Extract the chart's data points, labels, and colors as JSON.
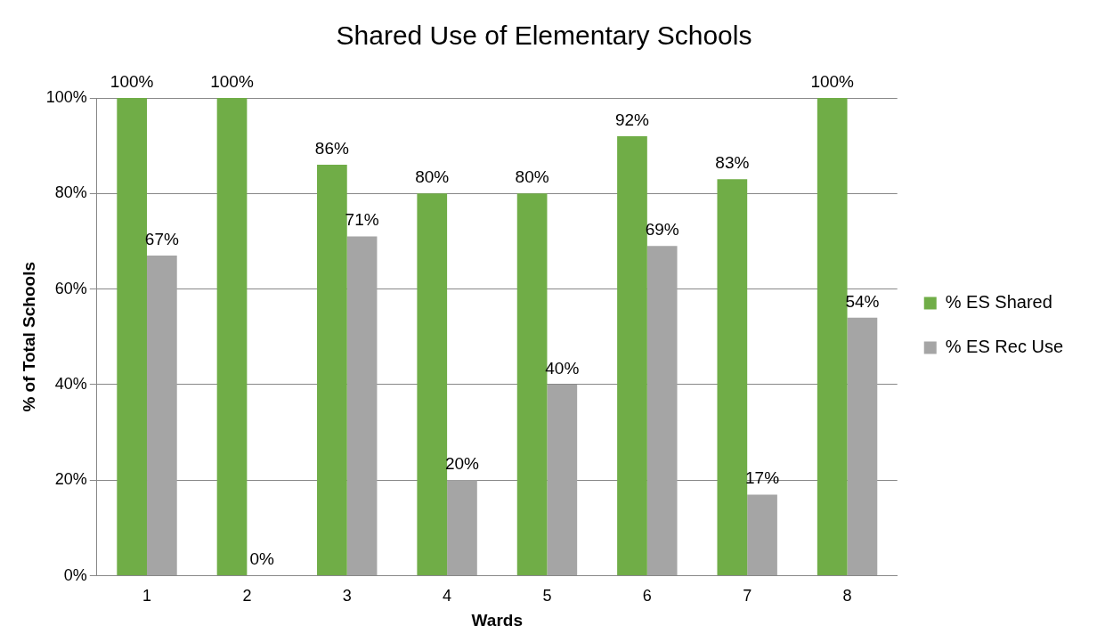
{
  "chart_data": {
    "type": "bar",
    "title": "Shared Use of Elementary Schools",
    "xlabel": "Wards",
    "ylabel": "% of Total Schools",
    "categories": [
      "1",
      "2",
      "3",
      "4",
      "5",
      "6",
      "7",
      "8"
    ],
    "series": [
      {
        "name": "% ES Shared",
        "color": "#70ad47",
        "values": [
          100,
          100,
          86,
          80,
          80,
          92,
          83,
          100
        ],
        "value_labels": [
          "100%",
          "100%",
          "86%",
          "80%",
          "80%",
          "92%",
          "83%",
          "100%"
        ]
      },
      {
        "name": "% ES Rec Use",
        "color": "#a5a5a5",
        "values": [
          67,
          0,
          71,
          20,
          40,
          69,
          17,
          54
        ],
        "value_labels": [
          "67%",
          "0%",
          "71%",
          "20%",
          "40%",
          "69%",
          "17%",
          "54%"
        ]
      }
    ],
    "ylim": [
      0,
      100
    ],
    "yticks": [
      {
        "value": 0,
        "label": "0%"
      },
      {
        "value": 20,
        "label": "20%"
      },
      {
        "value": 40,
        "label": "40%"
      },
      {
        "value": 60,
        "label": "60%"
      },
      {
        "value": 80,
        "label": "80%"
      },
      {
        "value": 100,
        "label": "100%"
      }
    ],
    "grid": "y",
    "legend": "right"
  }
}
